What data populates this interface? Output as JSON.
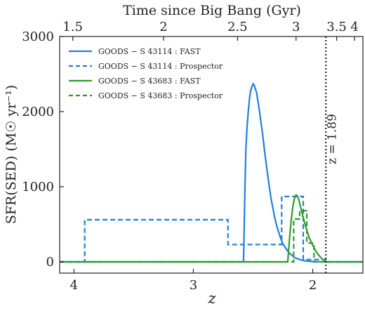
{
  "chart_data": {
    "type": "line",
    "title": "",
    "xlabel": "z",
    "ylabel": "SFR(SED) (M☉ yr⁻¹)",
    "top_xlabel": "Time since Big Bang (Gyr)",
    "xlim": [
      4.12,
      1.58
    ],
    "ylim": [
      -150,
      3000
    ],
    "x_ticks": [
      4,
      3,
      2
    ],
    "x_tick_labels": [
      "4",
      "3",
      "2"
    ],
    "y_ticks": [
      0,
      1000,
      2000,
      3000
    ],
    "y_tick_labels": [
      "0",
      "1000",
      "2000",
      "3000"
    ],
    "top_ticks": [
      {
        "label": "1.5",
        "z": 4.01
      },
      {
        "label": "2",
        "z": 3.25
      },
      {
        "label": "2.5",
        "z": 2.63
      },
      {
        "label": "3",
        "z": 2.14
      },
      {
        "label": "3.5",
        "z": 1.8
      },
      {
        "label": "4",
        "z": 1.65
      }
    ],
    "grid": false,
    "legend_position": "top-left",
    "annotation": {
      "text": "z = 1.89",
      "z": 1.89
    },
    "series": [
      {
        "name": "GOODS − S 43114 : FAST",
        "color": "#1f7fe0",
        "style": "solid",
        "points": [
          [
            4.12,
            0
          ],
          [
            2.58,
            0
          ],
          [
            2.575,
            400
          ],
          [
            2.568,
            1000
          ],
          [
            2.56,
            1500
          ],
          [
            2.55,
            1800
          ],
          [
            2.54,
            2000
          ],
          [
            2.53,
            2170
          ],
          [
            2.52,
            2280
          ],
          [
            2.51,
            2330
          ],
          [
            2.5,
            2370
          ],
          [
            2.49,
            2350
          ],
          [
            2.47,
            2250
          ],
          [
            2.45,
            2050
          ],
          [
            2.42,
            1700
          ],
          [
            2.4,
            1430
          ],
          [
            2.37,
            1070
          ],
          [
            2.35,
            850
          ],
          [
            2.32,
            600
          ],
          [
            2.3,
            470
          ],
          [
            2.27,
            320
          ],
          [
            2.25,
            240
          ],
          [
            2.2,
            120
          ],
          [
            2.15,
            55
          ],
          [
            2.1,
            25
          ],
          [
            2.05,
            10
          ],
          [
            2.0,
            4
          ],
          [
            1.95,
            1
          ],
          [
            1.89,
            0
          ],
          [
            1.58,
            0
          ]
        ]
      },
      {
        "name": "GOODS − S 43114 : Prospector",
        "color": "#1f7fe0",
        "style": "dashed",
        "points": [
          [
            4.12,
            0
          ],
          [
            3.91,
            0
          ],
          [
            3.91,
            560
          ],
          [
            2.71,
            560
          ],
          [
            2.71,
            230
          ],
          [
            2.26,
            230
          ],
          [
            2.26,
            870
          ],
          [
            2.08,
            870
          ],
          [
            2.08,
            30
          ],
          [
            1.89,
            30
          ],
          [
            1.89,
            0
          ],
          [
            1.58,
            0
          ]
        ]
      },
      {
        "name": "GOODS − S 43683 : FAST",
        "color": "#2e9a2e",
        "style": "solid",
        "points": [
          [
            4.12,
            0
          ],
          [
            2.21,
            0
          ],
          [
            2.2,
            200
          ],
          [
            2.19,
            400
          ],
          [
            2.18,
            560
          ],
          [
            2.17,
            700
          ],
          [
            2.16,
            800
          ],
          [
            2.15,
            860
          ],
          [
            2.14,
            890
          ],
          [
            2.13,
            880
          ],
          [
            2.12,
            840
          ],
          [
            2.11,
            780
          ],
          [
            2.09,
            650
          ],
          [
            2.07,
            530
          ],
          [
            2.05,
            420
          ],
          [
            2.03,
            320
          ],
          [
            2.0,
            220
          ],
          [
            1.97,
            130
          ],
          [
            1.94,
            70
          ],
          [
            1.92,
            35
          ],
          [
            1.9,
            15
          ],
          [
            1.89,
            0
          ],
          [
            1.58,
            0
          ]
        ]
      },
      {
        "name": "GOODS − S 43683 : Prospector",
        "color": "#2e9a2e",
        "style": "dashed",
        "points": [
          [
            4.12,
            0
          ],
          [
            2.16,
            0
          ],
          [
            2.16,
            570
          ],
          [
            2.11,
            570
          ],
          [
            2.11,
            680
          ],
          [
            2.05,
            680
          ],
          [
            2.05,
            250
          ],
          [
            1.99,
            250
          ],
          [
            1.99,
            0
          ],
          [
            1.58,
            0
          ]
        ]
      }
    ]
  }
}
